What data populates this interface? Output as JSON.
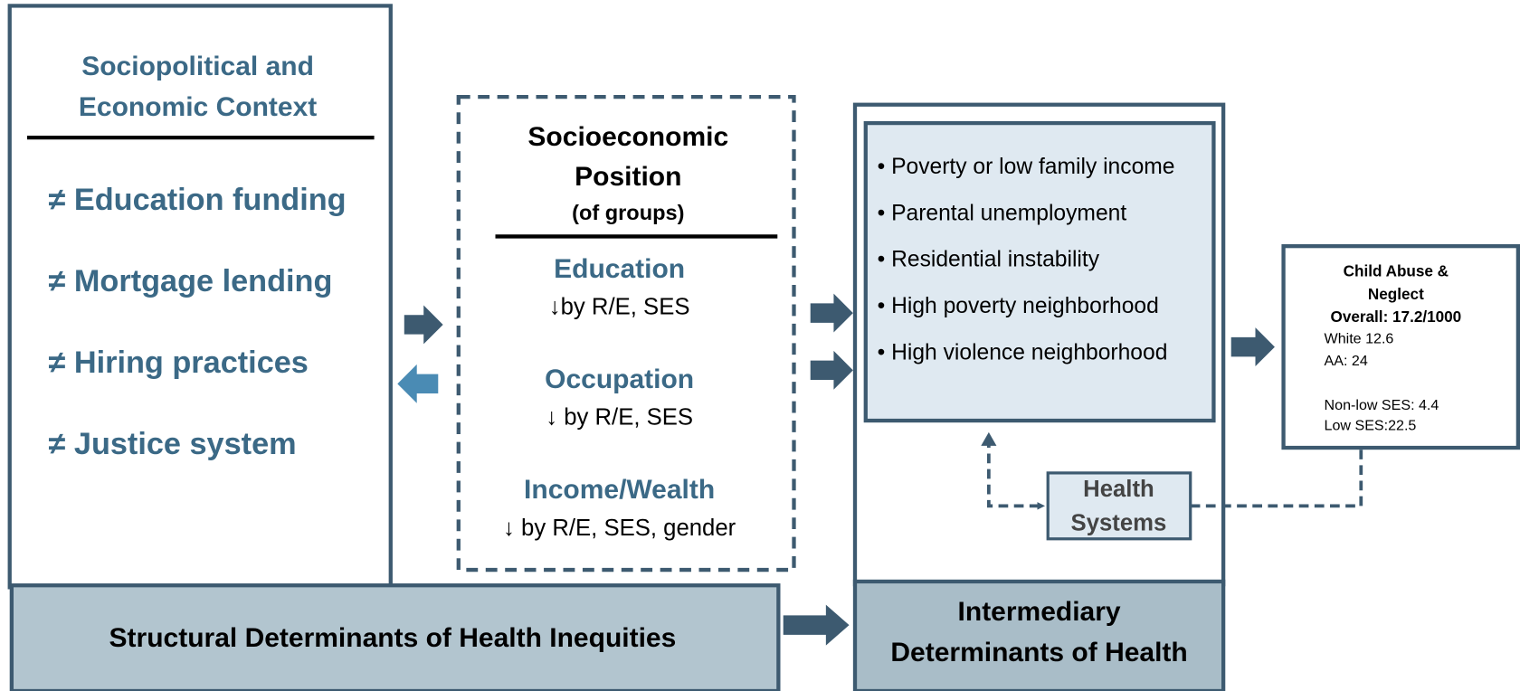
{
  "context": {
    "title_lines": [
      "Sociopolitical and",
      "Economic Context"
    ],
    "items": [
      "≠ Education funding",
      "≠ Mortgage lending",
      "≠ Hiring practices",
      "≠ Justice system"
    ]
  },
  "socioeconomic_position": {
    "title_lines": [
      "Socioeconomic",
      "Position"
    ],
    "subtitle": "(of groups)",
    "items": [
      {
        "label": "Education",
        "detail": "↓by R/E, SES"
      },
      {
        "label": "Occupation",
        "detail": "↓ by R/E, SES"
      },
      {
        "label": "Income/Wealth",
        "detail": "↓ by R/E, SES, gender"
      }
    ]
  },
  "intermediary": {
    "items": [
      "• Poverty or low family income",
      "• Parental unemployment",
      "• Residential instability",
      "• High poverty neighborhood",
      "• High violence neighborhood"
    ],
    "health_systems_lines": [
      "Health",
      "Systems"
    ]
  },
  "outcome": {
    "title_lines": [
      "Child Abuse &",
      "Neglect",
      "Overall: 17.2/1000"
    ],
    "lines": [
      "White 12.6",
      "AA: 24",
      "Non-low SES: 4.4",
      "Low SES:22.5"
    ]
  },
  "footer": {
    "structural_label": "Structural Determinants of Health Inequities",
    "intermediary_label_lines": [
      "Intermediary",
      "Determinants of Health"
    ]
  }
}
